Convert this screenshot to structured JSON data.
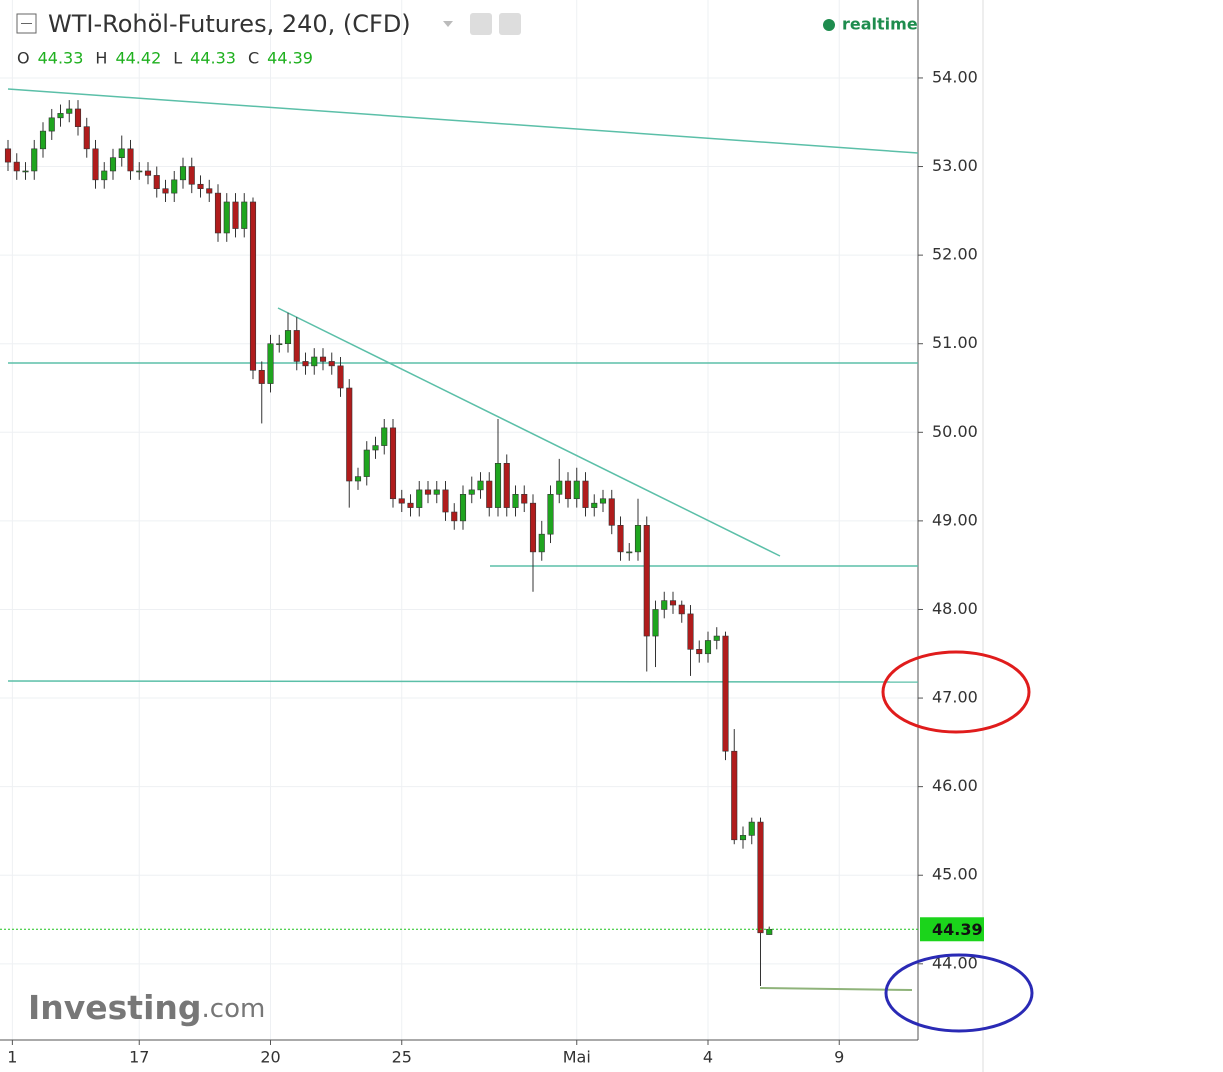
{
  "chart_data": {
    "type": "candlestick",
    "title": "WTI-Rohöl-Futures, 240, (CFD)",
    "realtime_label": "realtime",
    "ohlc_labels": [
      "O",
      "H",
      "L",
      "C"
    ],
    "watermark": {
      "brand": "Investing",
      "suffix": ".com"
    },
    "up_color": "#1fa51f",
    "down_color": "#b01c1c",
    "xlim": [
      -0.914,
      104.0
    ],
    "xticks": [
      {
        "value": 0.5,
        "label": "1"
      },
      {
        "value": 15,
        "label": "17"
      },
      {
        "value": 30,
        "label": "20"
      },
      {
        "value": 45,
        "label": "25"
      },
      {
        "value": 65,
        "label": "Mai"
      },
      {
        "value": 80,
        "label": "4"
      },
      {
        "value": 95,
        "label": "9"
      }
    ],
    "ylim": [
      43.14,
      54.88
    ],
    "yticks": [
      {
        "value": 44,
        "label": "44.00"
      },
      {
        "value": 45,
        "label": "45.00"
      },
      {
        "value": 46,
        "label": "46.00"
      },
      {
        "value": 47,
        "label": "47.00"
      },
      {
        "value": 48,
        "label": "48.00"
      },
      {
        "value": 49,
        "label": "49.00"
      },
      {
        "value": 50,
        "label": "50.00"
      },
      {
        "value": 51,
        "label": "51.00"
      },
      {
        "value": 52,
        "label": "52.00"
      },
      {
        "value": 53,
        "label": "53.00"
      },
      {
        "value": 54,
        "label": "54.00"
      }
    ],
    "grid": true,
    "open": [
      53.2,
      53.05,
      52.95,
      52.95,
      53.2,
      53.4,
      53.55,
      53.6,
      53.65,
      53.45,
      53.2,
      52.85,
      52.95,
      53.1,
      53.2,
      52.95,
      52.95,
      52.9,
      52.75,
      52.7,
      52.85,
      53.0,
      52.8,
      52.75,
      52.7,
      52.25,
      52.6,
      52.3,
      52.6,
      50.7,
      50.55,
      51.0,
      51.0,
      51.15,
      50.8,
      50.75,
      50.85,
      50.8,
      50.75,
      50.5,
      49.45,
      49.5,
      49.8,
      49.85,
      50.05,
      49.25,
      49.2,
      49.15,
      49.35,
      49.3,
      49.35,
      49.1,
      49.0,
      49.3,
      49.35,
      49.45,
      49.15,
      49.65,
      49.15,
      49.3,
      49.2,
      48.65,
      48.85,
      49.3,
      49.45,
      49.25,
      49.45,
      49.15,
      49.2,
      49.25,
      48.95,
      48.65,
      48.65,
      48.95,
      47.7,
      48.0,
      48.1,
      48.05,
      47.95,
      47.55,
      47.5,
      47.65,
      47.7,
      46.4,
      45.4,
      45.45,
      45.6,
      44.33
    ],
    "high": [
      53.3,
      53.15,
      53.05,
      53.3,
      53.5,
      53.65,
      53.7,
      53.75,
      53.75,
      53.55,
      53.3,
      53.05,
      53.2,
      53.35,
      53.3,
      53.05,
      53.05,
      53.0,
      52.85,
      52.95,
      53.1,
      53.1,
      52.9,
      52.85,
      52.8,
      52.7,
      52.7,
      52.7,
      52.65,
      50.8,
      51.1,
      51.1,
      51.35,
      51.3,
      50.9,
      50.95,
      50.95,
      50.9,
      50.85,
      50.6,
      49.6,
      49.9,
      49.95,
      50.15,
      50.15,
      49.35,
      49.3,
      49.45,
      49.45,
      49.45,
      49.45,
      49.2,
      49.4,
      49.5,
      49.55,
      49.55,
      50.15,
      49.75,
      49.4,
      49.4,
      49.3,
      49.0,
      49.4,
      49.7,
      49.55,
      49.6,
      49.55,
      49.3,
      49.35,
      49.35,
      49.05,
      48.75,
      49.25,
      49.05,
      48.1,
      48.2,
      48.2,
      48.1,
      48.05,
      47.65,
      47.75,
      47.8,
      47.75,
      46.65,
      45.55,
      45.65,
      45.65,
      44.42
    ],
    "low": [
      52.95,
      52.85,
      52.85,
      52.85,
      53.1,
      53.3,
      53.45,
      53.5,
      53.35,
      53.1,
      52.75,
      52.75,
      52.85,
      53.0,
      52.85,
      52.85,
      52.8,
      52.65,
      52.6,
      52.6,
      52.75,
      52.7,
      52.65,
      52.6,
      52.15,
      52.15,
      52.2,
      52.2,
      50.6,
      50.1,
      50.45,
      50.9,
      50.9,
      50.7,
      50.65,
      50.65,
      50.7,
      50.65,
      50.4,
      49.15,
      49.35,
      49.4,
      49.7,
      49.75,
      49.15,
      49.1,
      49.05,
      49.05,
      49.2,
      49.2,
      49.0,
      48.9,
      48.9,
      49.2,
      49.25,
      49.05,
      49.05,
      49.05,
      49.05,
      49.1,
      48.2,
      48.55,
      48.75,
      49.2,
      49.15,
      49.15,
      49.05,
      49.05,
      49.1,
      48.85,
      48.55,
      48.55,
      48.55,
      47.3,
      47.35,
      47.9,
      47.95,
      47.85,
      47.25,
      47.4,
      47.4,
      47.55,
      46.3,
      45.35,
      45.3,
      45.35,
      43.75,
      44.33
    ],
    "close": [
      53.05,
      52.95,
      52.95,
      53.2,
      53.4,
      53.55,
      53.6,
      53.65,
      53.45,
      53.2,
      52.85,
      52.95,
      53.1,
      53.2,
      52.95,
      52.95,
      52.9,
      52.75,
      52.7,
      52.85,
      53.0,
      52.8,
      52.75,
      52.7,
      52.25,
      52.6,
      52.3,
      52.6,
      50.7,
      50.55,
      51.0,
      51.0,
      51.15,
      50.8,
      50.75,
      50.85,
      50.8,
      50.75,
      50.5,
      49.45,
      49.5,
      49.8,
      49.85,
      50.05,
      49.25,
      49.2,
      49.15,
      49.35,
      49.3,
      49.35,
      49.1,
      49.0,
      49.3,
      49.35,
      49.45,
      49.15,
      49.65,
      49.15,
      49.3,
      49.2,
      48.65,
      48.85,
      49.3,
      49.45,
      49.25,
      49.45,
      49.15,
      49.2,
      49.25,
      48.95,
      48.65,
      48.65,
      48.95,
      47.7,
      48.0,
      48.1,
      48.05,
      47.95,
      47.55,
      47.5,
      47.65,
      47.7,
      46.4,
      45.4,
      45.45,
      45.6,
      44.35,
      44.39
    ]
  }
}
